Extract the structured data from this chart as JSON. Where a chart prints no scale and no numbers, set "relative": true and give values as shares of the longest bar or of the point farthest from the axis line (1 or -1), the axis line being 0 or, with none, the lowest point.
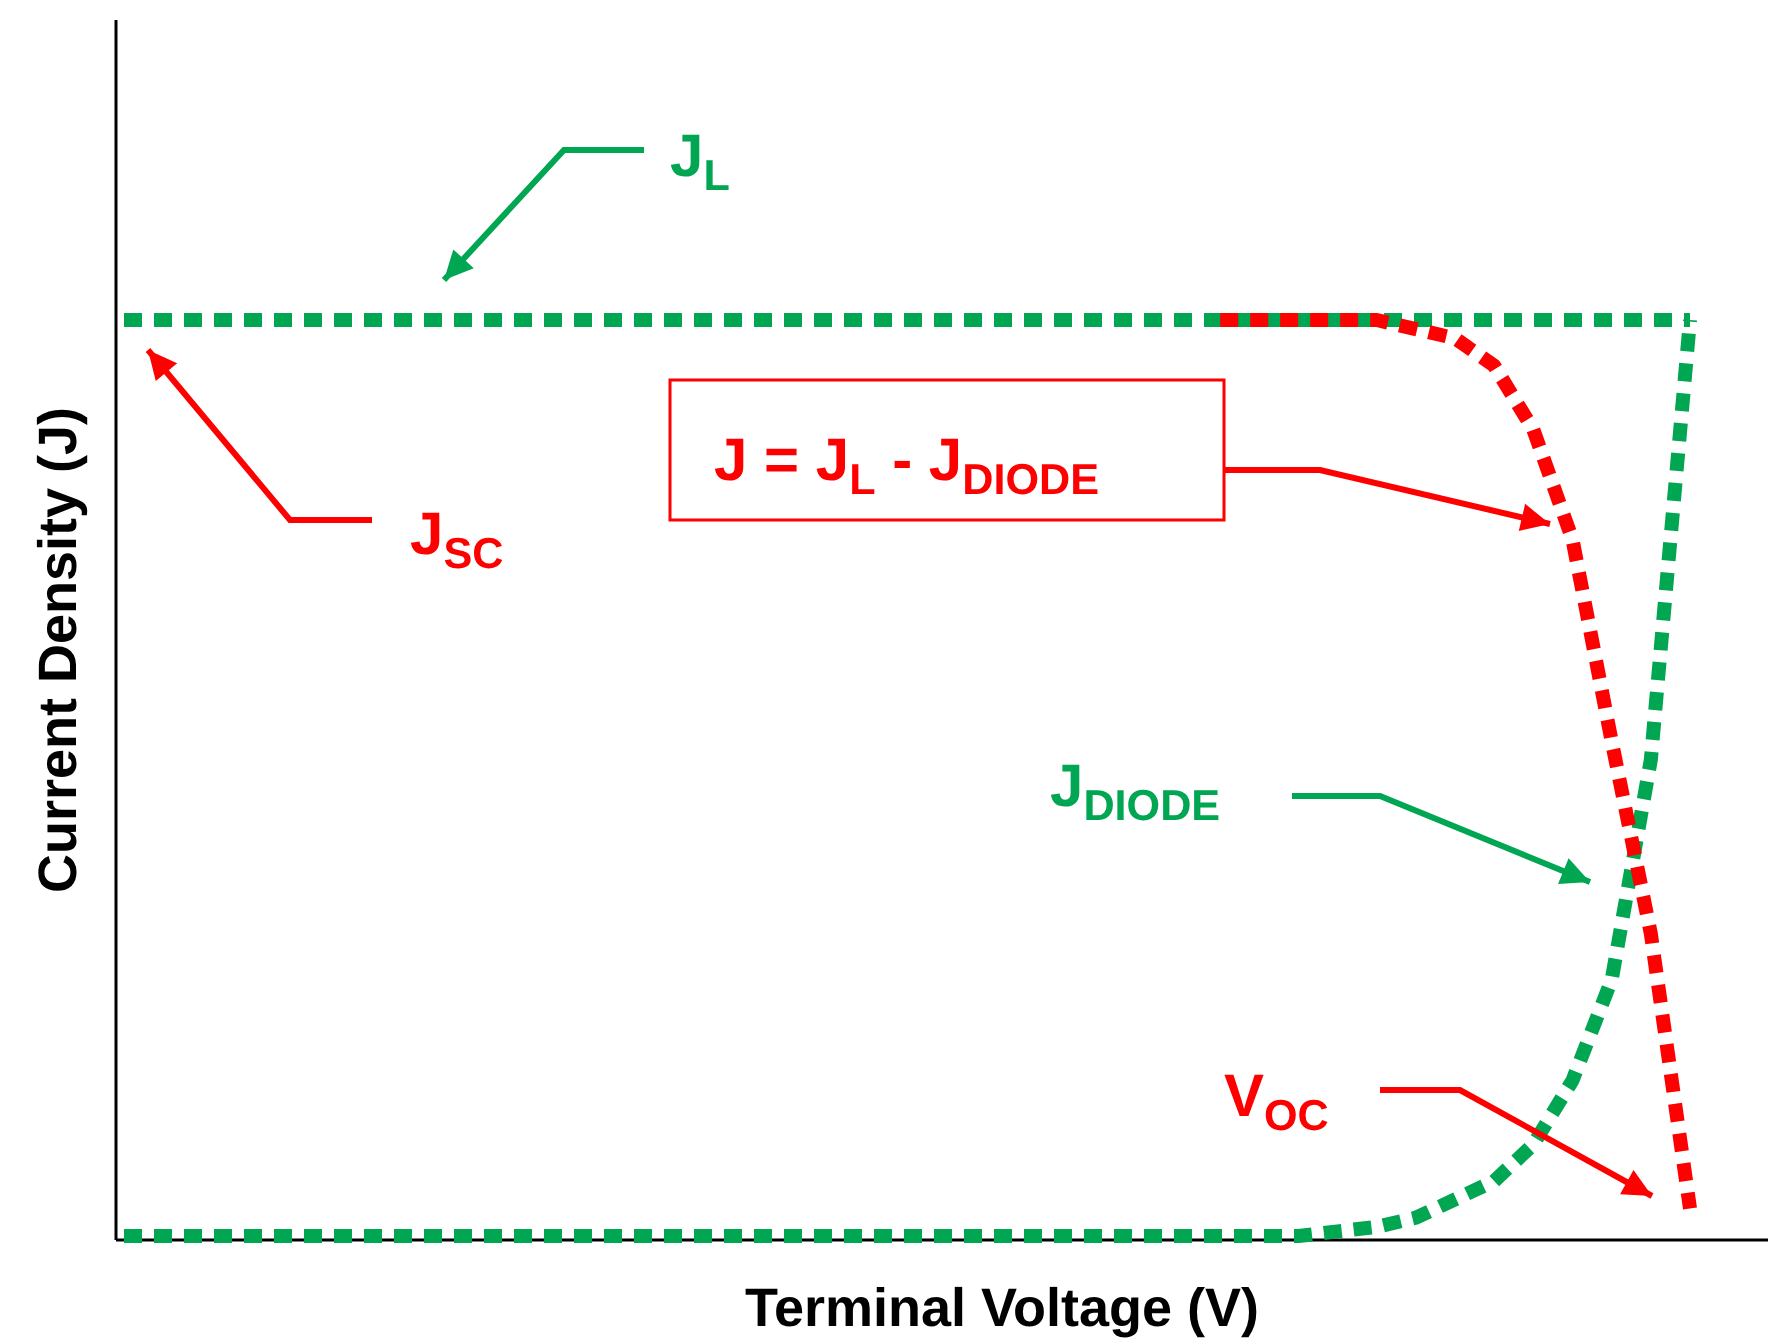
{
  "chart_data": {
    "type": "line",
    "relative": true,
    "xlabel": "Terminal Voltage (V)",
    "ylabel": "Current Density (J)",
    "line_style": "dotted",
    "marker": "none",
    "categories": [
      null,
      null,
      null,
      null,
      null,
      null,
      null,
      null,
      null,
      null,
      null,
      null,
      null,
      null,
      null,
      null,
      null,
      null,
      null,
      null,
      null,
      null,
      null,
      null,
      null,
      null,
      null,
      null,
      null,
      null,
      null,
      null,
      null,
      null,
      null,
      null,
      null,
      null,
      null,
      null,
      null
    ],
    "series": [
      {
        "color": "#00a651",
        "values": [
          1,
          1,
          1,
          1,
          1,
          1,
          1,
          1,
          1,
          1,
          1,
          1,
          1,
          1,
          1,
          1,
          1,
          1,
          1,
          1,
          1,
          1,
          1,
          1,
          1,
          1,
          1,
          1,
          1,
          1,
          1,
          1,
          1,
          1,
          1,
          1,
          1,
          1,
          1,
          1,
          1
        ]
      },
      {
        "color": "#00a651",
        "values": [
          0,
          0,
          0,
          0,
          0,
          0,
          0,
          0,
          0,
          0,
          0,
          0,
          0,
          0,
          0,
          0,
          0,
          0,
          0,
          0,
          0,
          0,
          0,
          0,
          0,
          0,
          0,
          0,
          0,
          0,
          0,
          0.005,
          0.01,
          0.02,
          0.04,
          0.06,
          0.1,
          0.17,
          0.28,
          0.52,
          1
        ]
      },
      {
        "color": "#ff0000",
        "values": [
          null,
          null,
          null,
          null,
          null,
          null,
          null,
          null,
          null,
          null,
          null,
          null,
          null,
          null,
          null,
          null,
          null,
          null,
          null,
          null,
          null,
          null,
          null,
          null,
          null,
          null,
          null,
          null,
          1,
          1,
          1,
          1,
          1,
          0.99,
          0.98,
          0.95,
          0.88,
          0.76,
          0.54,
          0.33,
          0.03
        ]
      }
    ],
    "annotations": [
      "J$_{L}$",
      "J$_{SC}$",
      "J = J$_{L}$ - J$_{DIODE}$",
      "J$_{DIODE}$",
      "V$_{OC}$"
    ]
  }
}
